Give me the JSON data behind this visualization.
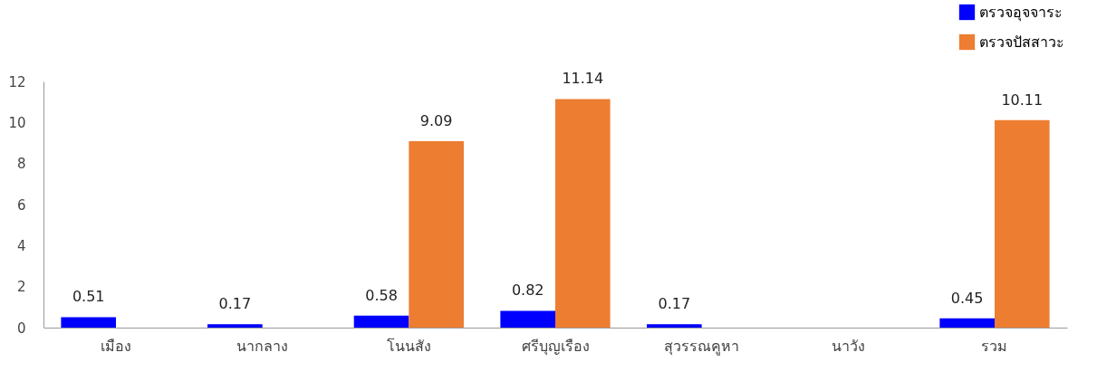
{
  "chart_data": {
    "type": "bar",
    "categories": [
      "เมือง",
      "นากลาง",
      "โนนสัง",
      "ศรีบุญเรือง",
      "สุวรรณคูหา",
      "นาวัง",
      "รวม"
    ],
    "series": [
      {
        "name": "ตรวจอุจจาระ",
        "color": "#0000ff",
        "values": [
          0.51,
          0.17,
          0.58,
          0.82,
          0.17,
          null,
          0.45
        ]
      },
      {
        "name": "ตรวจปัสสาวะ",
        "color": "#ed7d31",
        "values": [
          null,
          null,
          9.09,
          11.14,
          null,
          null,
          10.11
        ]
      }
    ],
    "ylim": [
      0,
      12
    ],
    "yticks": [
      0,
      2,
      4,
      6,
      8,
      10,
      12
    ],
    "grid": false,
    "legend": "top right",
    "data_labels": true
  }
}
